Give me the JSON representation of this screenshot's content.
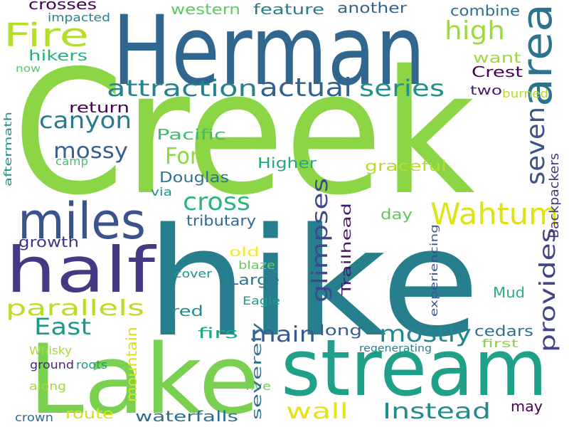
{
  "words": [
    {
      "text": "Creek",
      "color": "#8cd646",
      "v": false
    },
    {
      "text": "hike",
      "color": "#277f8e",
      "v": false
    },
    {
      "text": "Herman",
      "color": "#31678e",
      "v": false
    },
    {
      "text": "Lake",
      "color": "#7ad151",
      "v": false
    },
    {
      "text": "stream",
      "color": "#1fa088",
      "v": false
    },
    {
      "text": "half",
      "color": "#443983",
      "v": false
    },
    {
      "text": "miles",
      "color": "#3a538b",
      "v": false
    },
    {
      "text": "Wahtum",
      "color": "#dde318",
      "v": false
    },
    {
      "text": "Fire",
      "color": "#b5de2b",
      "v": false
    },
    {
      "text": "area",
      "color": "#2c738e",
      "v": true
    },
    {
      "text": "attraction",
      "color": "#26828e",
      "v": false
    },
    {
      "text": "actual",
      "color": "#33638d",
      "v": false
    },
    {
      "text": "series",
      "color": "#21918c",
      "v": false
    },
    {
      "text": "high",
      "color": "#9fda3a",
      "v": false
    },
    {
      "text": "canyon",
      "color": "#2a788e",
      "v": false
    },
    {
      "text": "mossy",
      "color": "#35608d",
      "v": false
    },
    {
      "text": "Fork",
      "color": "#8fd744",
      "v": false
    },
    {
      "text": "seven",
      "color": "#3b528b",
      "v": true
    },
    {
      "text": "cross",
      "color": "#2fb47c",
      "v": false
    },
    {
      "text": "glimpses",
      "color": "#3e4989",
      "v": true
    },
    {
      "text": "parallels",
      "color": "#b8de29",
      "v": false
    },
    {
      "text": "provides",
      "color": "#414487",
      "v": true
    },
    {
      "text": "East",
      "color": "#1f988b",
      "v": false
    },
    {
      "text": "main",
      "color": "#375b8d",
      "v": false
    },
    {
      "text": "mostly",
      "color": "#23888e",
      "v": false
    },
    {
      "text": "Instead",
      "color": "#228c8d",
      "v": false
    },
    {
      "text": "wall",
      "color": "#e5e419",
      "v": false
    },
    {
      "text": "Trailhead",
      "color": "#481769",
      "v": true
    },
    {
      "text": "Backpackers",
      "color": "#453781",
      "v": true
    },
    {
      "text": "Crest",
      "color": "#440154",
      "v": false
    },
    {
      "text": "combine",
      "color": "#2d708e",
      "v": false
    },
    {
      "text": "another",
      "color": "#33638d",
      "v": false
    },
    {
      "text": "feature",
      "color": "#287c8e",
      "v": false
    },
    {
      "text": "western",
      "color": "#5ec962",
      "v": false
    },
    {
      "text": "crosses",
      "color": "#440154",
      "v": false
    },
    {
      "text": "impacted",
      "color": "#25848e",
      "v": false
    },
    {
      "text": "hikers",
      "color": "#29af7f",
      "v": false
    },
    {
      "text": "now",
      "color": "#56c667",
      "v": false
    },
    {
      "text": "want",
      "color": "#a0da39",
      "v": false
    },
    {
      "text": "two",
      "color": "#481f70",
      "v": false
    },
    {
      "text": "burned",
      "color": "#b2dd2d",
      "v": false
    },
    {
      "text": "return",
      "color": "#440154",
      "v": false
    },
    {
      "text": "aftermath",
      "color": "#21918c",
      "v": true
    },
    {
      "text": "camp",
      "color": "#4ac16d",
      "v": false
    },
    {
      "text": "Pacific",
      "color": "#3fbc73",
      "v": false
    },
    {
      "text": "Higher",
      "color": "#22a785",
      "v": false
    },
    {
      "text": "graceful",
      "color": "#b5de2b",
      "v": false
    },
    {
      "text": "Douglas",
      "color": "#2c738e",
      "v": false
    },
    {
      "text": "via",
      "color": "#20928c",
      "v": false
    },
    {
      "text": "tributary",
      "color": "#31688e",
      "v": false
    },
    {
      "text": "day",
      "color": "#5ec962",
      "v": false
    },
    {
      "text": "growth",
      "color": "#46337f",
      "v": false
    },
    {
      "text": "old",
      "color": "#fde725",
      "v": false
    },
    {
      "text": "blaze",
      "color": "#65cb5e",
      "v": false
    },
    {
      "text": "cover",
      "color": "#1f968b",
      "v": false
    },
    {
      "text": "Large",
      "color": "#2a788e",
      "v": false
    },
    {
      "text": "Eagle",
      "color": "#1e9b8a",
      "v": false
    },
    {
      "text": "red",
      "color": "#228c8d",
      "v": false
    },
    {
      "text": "firs",
      "color": "#21a685",
      "v": false
    },
    {
      "text": "long",
      "color": "#375b8d",
      "v": false
    },
    {
      "text": "cedars",
      "color": "#2d718e",
      "v": false
    },
    {
      "text": "Mud",
      "color": "#27ad81",
      "v": false
    },
    {
      "text": "first",
      "color": "#8bd646",
      "v": false
    },
    {
      "text": "experiencing",
      "color": "#3b528b",
      "v": true
    },
    {
      "text": "regenerating",
      "color": "#26828e",
      "v": false
    },
    {
      "text": "mountain",
      "color": "#d8e219",
      "v": true
    },
    {
      "text": "Whisky",
      "color": "#a5db36",
      "v": false
    },
    {
      "text": "ground",
      "color": "#482878",
      "v": false
    },
    {
      "text": "roots",
      "color": "#1f9a8a",
      "v": false
    },
    {
      "text": "along",
      "color": "#a2da37",
      "v": false
    },
    {
      "text": "five",
      "color": "#73d056",
      "v": false
    },
    {
      "text": "severely",
      "color": "#2c728e",
      "v": true
    },
    {
      "text": "crown",
      "color": "#30698e",
      "v": false
    },
    {
      "text": "route",
      "color": "#d2e21b",
      "v": false
    },
    {
      "text": "waterfalls",
      "color": "#2e6e8e",
      "v": false
    },
    {
      "text": "may",
      "color": "#440154",
      "v": false
    }
  ]
}
